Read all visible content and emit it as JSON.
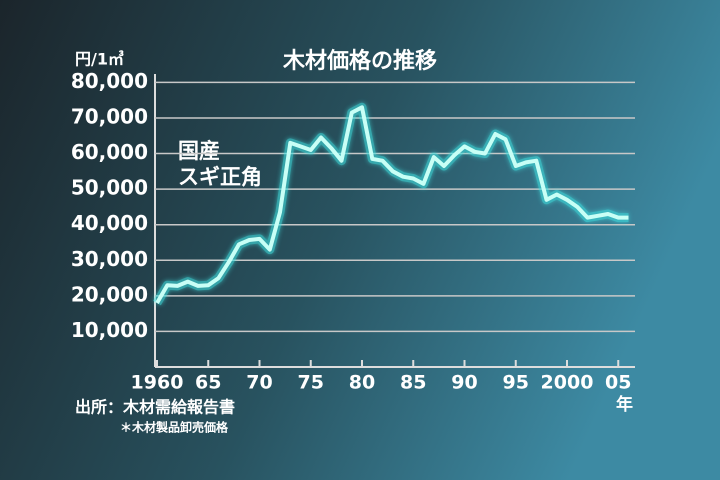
{
  "chart_data": {
    "type": "line",
    "title": "木材価格の推移",
    "y_unit": "円/1㎥",
    "x_unit": "年",
    "annotation": [
      "国産",
      "スギ正角"
    ],
    "source": "出所：木材需給報告書",
    "note": "＊木材製品卸売価格",
    "color": "#c8fff6",
    "x": [
      1960,
      1961,
      1962,
      1963,
      1964,
      1965,
      1966,
      1967,
      1968,
      1969,
      1970,
      1971,
      1972,
      1973,
      1974,
      1975,
      1976,
      1977,
      1978,
      1979,
      1980,
      1981,
      1982,
      1983,
      1984,
      1985,
      1986,
      1987,
      1988,
      1989,
      1990,
      1991,
      1992,
      1993,
      1994,
      1995,
      1996,
      1997,
      1998,
      1999,
      2000,
      2001,
      2002,
      2003,
      2004,
      2005,
      2006
    ],
    "values": [
      18000,
      23000,
      22800,
      24000,
      22800,
      23000,
      25000,
      29500,
      34500,
      35700,
      36000,
      33000,
      43500,
      63000,
      62000,
      61000,
      64500,
      61500,
      58000,
      71500,
      73000,
      58500,
      58000,
      55000,
      53500,
      53000,
      51500,
      59000,
      56500,
      59500,
      62000,
      60500,
      60000,
      65500,
      64000,
      56500,
      57500,
      58000,
      47000,
      48500,
      47000,
      45000,
      42000,
      42500,
      43000,
      42000,
      42000
    ],
    "xlim": [
      1960,
      2006
    ],
    "xticks": [
      1960,
      {
        "value": 1965,
        "label": "65"
      },
      {
        "value": 1970,
        "label": "70"
      },
      {
        "value": 1975,
        "label": "75"
      },
      {
        "value": 1980,
        "label": "80"
      },
      {
        "value": 1985,
        "label": "85"
      },
      {
        "value": 1990,
        "label": "90"
      },
      {
        "value": 1995,
        "label": "95"
      },
      2000,
      {
        "value": 2005,
        "label": "05"
      }
    ],
    "ylim": [
      0,
      80000
    ],
    "yticks": [
      {
        "value": 10000,
        "label": "10,000"
      },
      {
        "value": 20000,
        "label": "20,000"
      },
      {
        "value": 30000,
        "label": "30,000"
      },
      {
        "value": 40000,
        "label": "40,000"
      },
      {
        "value": 50000,
        "label": "50,000"
      },
      {
        "value": 60000,
        "label": "60,000"
      },
      {
        "value": 70000,
        "label": "70,000"
      },
      {
        "value": 80000,
        "label": "80,000"
      }
    ],
    "grid": true
  }
}
